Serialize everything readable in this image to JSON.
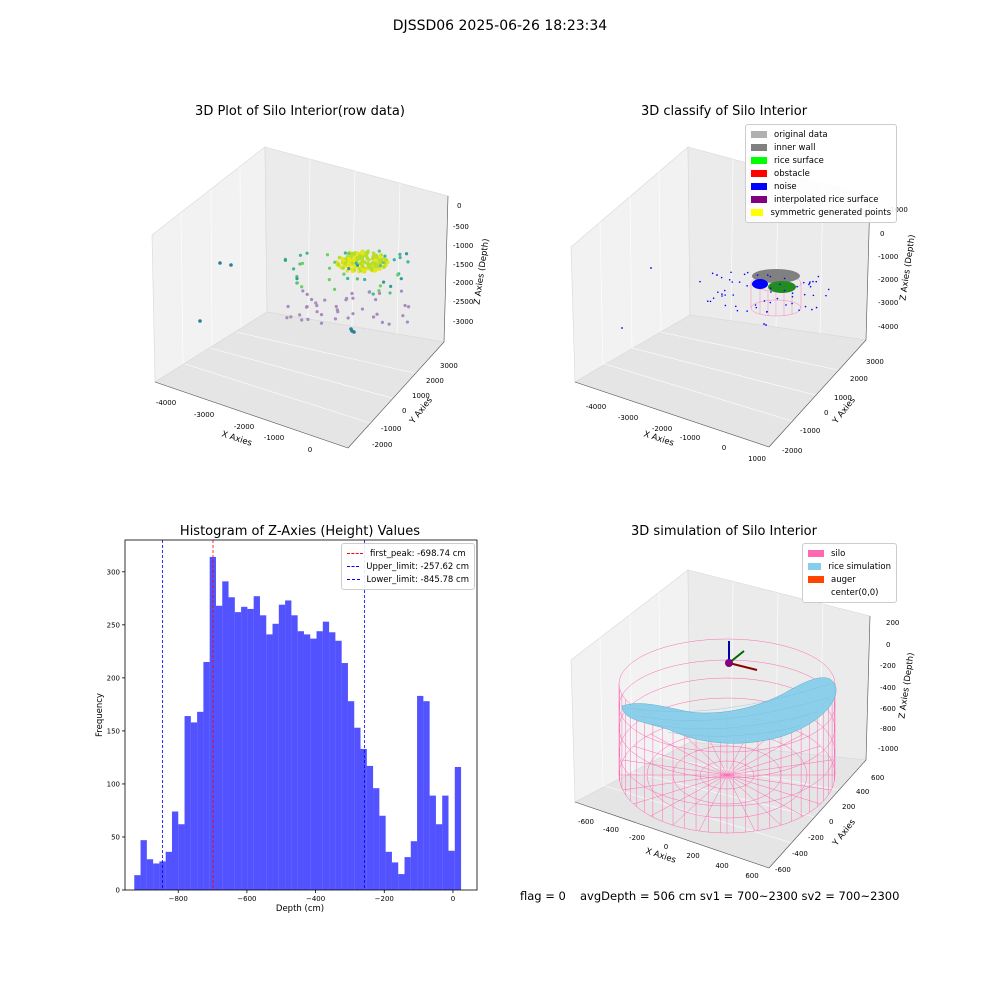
{
  "figure": {
    "suptitle": "DJSSD06 2025-06-26 18:23:34"
  },
  "panels": {
    "raw": {
      "title": "3D Plot of Silo Interior(row data)",
      "xlabel": "X Axies",
      "ylabel": "Y Axies",
      "zlabel": "Z Axies (Depth)",
      "x_ticks": [
        "-4000",
        "-3000",
        "-2000",
        "-1000",
        "0"
      ],
      "y_ticks": [
        "-2000",
        "-1000",
        "0",
        "1000",
        "2000",
        "3000"
      ],
      "z_ticks": [
        "0",
        "-500",
        "-1000",
        "-1500",
        "-2000",
        "-2500",
        "-3000"
      ]
    },
    "classify": {
      "title": "3D classify of Silo Interior",
      "xlabel": "X Axies",
      "ylabel": "Y Axies",
      "zlabel": "Z Axies (Depth)",
      "x_ticks": [
        "-4000",
        "-3000",
        "-2000",
        "-1000",
        "0",
        "1000"
      ],
      "y_ticks": [
        "-2000",
        "-1000",
        "0",
        "1000",
        "2000",
        "3000"
      ],
      "z_ticks": [
        "1000",
        "0",
        "-1000",
        "-2000",
        "-3000",
        "-4000"
      ],
      "legend": [
        {
          "label": "original data",
          "color": "#b0b0b0"
        },
        {
          "label": "inner wall",
          "color": "#808080"
        },
        {
          "label": "rice surface",
          "color": "#00ff00"
        },
        {
          "label": "obstacle",
          "color": "#ff0000"
        },
        {
          "label": "noise",
          "color": "#0000ff"
        },
        {
          "label": "interpolated rice surface",
          "color": "#800080"
        },
        {
          "label": "symmetric generated points",
          "color": "#ffff00"
        }
      ]
    },
    "simulation": {
      "title": "3D simulation of Silo Interior",
      "xlabel": "X Axies",
      "ylabel": "Y Axies",
      "zlabel": "Z Axies (Depth)",
      "x_ticks": [
        "-600",
        "-400",
        "-200",
        "0",
        "200",
        "400",
        "600"
      ],
      "y_ticks": [
        "-600",
        "-400",
        "-200",
        "0",
        "200",
        "400",
        "600"
      ],
      "z_ticks": [
        "200",
        "0",
        "-200",
        "-400",
        "-600",
        "-800",
        "-1000"
      ],
      "legend": [
        {
          "label": "silo",
          "color": "#ff69b4"
        },
        {
          "label": "rice simulation",
          "color": "#87ceeb"
        },
        {
          "label": "auger",
          "color": "#ff4500"
        },
        {
          "label": "center(0,0)",
          "color": "#ffffff"
        }
      ]
    }
  },
  "footer": {
    "flag": "flag = 0",
    "stats": "avgDepth = 506 cm  sv1 = 700~2300  sv2 = 700~2300"
  },
  "chart_data": [
    {
      "type": "bar",
      "title": "Histogram of Z-Axies (Height) Values",
      "xlabel": "Depth (cm)",
      "ylabel": "Frequency",
      "xlim": [
        -955,
        70
      ],
      "ylim": [
        0,
        330
      ],
      "x_ticks": [
        -800,
        -600,
        -400,
        -200,
        0
      ],
      "y_ticks": [
        0,
        50,
        100,
        150,
        200,
        250,
        300
      ],
      "grid": false,
      "legend_position": "top-right",
      "bar_color": "#0000ff",
      "bin_start": -928,
      "bin_width": 18.3,
      "values": [
        14,
        47,
        29,
        25,
        27,
        36,
        74,
        62,
        164,
        158,
        168,
        215,
        314,
        268,
        291,
        276,
        262,
        267,
        265,
        277,
        259,
        241,
        251,
        269,
        273,
        259,
        244,
        241,
        237,
        244,
        253,
        243,
        235,
        214,
        178,
        153,
        133,
        117,
        96,
        70,
        36,
        26,
        15,
        31,
        46,
        183,
        178,
        89,
        62,
        89,
        37,
        116
      ],
      "reference_lines": [
        {
          "name": "first_peak: -698.74 cm",
          "x": -698.74,
          "color": "#ff0000"
        },
        {
          "name": "Upper_limit: -257.62 cm",
          "x": -257.62,
          "color": "#0000ff"
        },
        {
          "name": "Lower_limit: -845.78 cm",
          "x": -845.78,
          "color": "#0000ff"
        }
      ]
    }
  ]
}
